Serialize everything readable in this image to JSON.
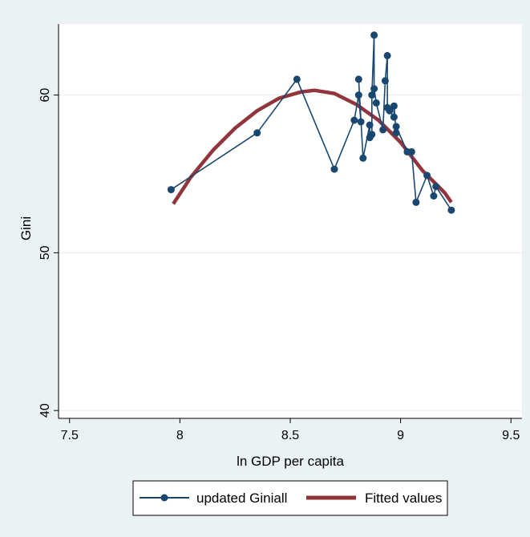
{
  "chart_data": {
    "type": "line",
    "xlabel": "ln GDP per capita",
    "ylabel": "Gini",
    "xlim": [
      7.45,
      9.55
    ],
    "ylim": [
      39.5,
      64.5
    ],
    "x_ticks": [
      7.5,
      8,
      8.5,
      9,
      9.5
    ],
    "x_tick_labels": [
      "7.5",
      "8",
      "8.5",
      "9",
      "9.5"
    ],
    "y_ticks": [
      40,
      50,
      60
    ],
    "y_tick_labels": [
      "40",
      "50",
      "60"
    ],
    "grid": "horizontal",
    "legend_position": "bottom",
    "series": [
      {
        "name": "updated Giniall",
        "color": "#1a476f",
        "marker": "circle",
        "x": [
          7.96,
          8.35,
          8.53,
          8.7,
          8.79,
          8.81,
          8.82,
          8.81,
          8.83,
          8.86,
          8.86,
          8.87,
          8.87,
          8.88,
          8.88,
          8.89,
          8.92,
          8.93,
          8.94,
          8.94,
          8.95,
          8.97,
          8.97,
          8.98,
          8.98,
          9.03,
          9.05,
          9.07,
          9.12,
          9.15,
          9.16,
          9.23
        ],
        "y": [
          54.0,
          57.6,
          61.0,
          55.3,
          58.4,
          60.0,
          58.3,
          61.0,
          56.0,
          58.1,
          57.3,
          57.5,
          60.0,
          63.8,
          60.4,
          59.5,
          57.8,
          60.9,
          62.5,
          59.2,
          59.0,
          58.6,
          59.3,
          57.6,
          58.0,
          56.4,
          56.4,
          53.2,
          54.9,
          53.6,
          54.2,
          52.7
        ]
      },
      {
        "name": "Fitted values",
        "color": "#90353b",
        "x": [
          7.97,
          8.05,
          8.15,
          8.25,
          8.35,
          8.45,
          8.55,
          8.61,
          8.7,
          8.8,
          8.9,
          9.0,
          9.1,
          9.2,
          9.23
        ],
        "y": [
          53.1,
          54.8,
          56.5,
          57.9,
          59.0,
          59.8,
          60.2,
          60.3,
          60.1,
          59.4,
          58.4,
          57.0,
          55.2,
          53.8,
          53.2
        ]
      }
    ]
  }
}
